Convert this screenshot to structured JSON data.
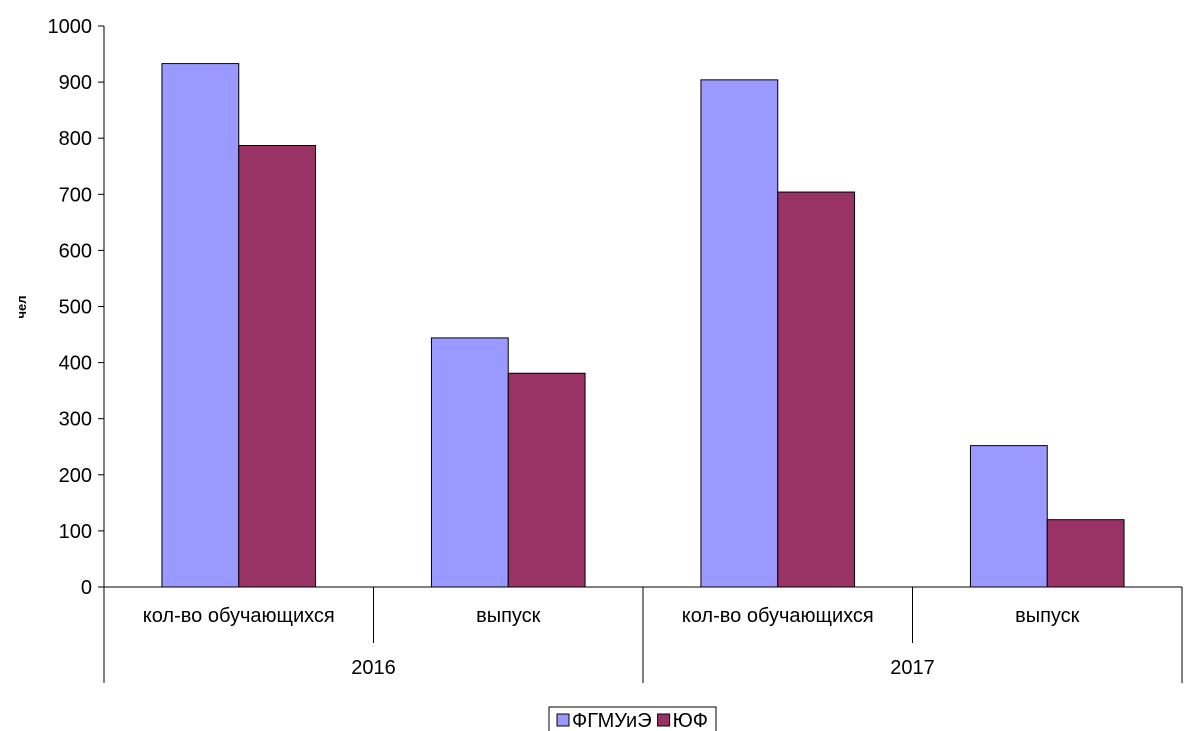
{
  "chart_data": {
    "type": "bar",
    "title": "",
    "xlabel": "",
    "ylabel": "чел",
    "ylim": [
      0,
      1000
    ],
    "yticks": [
      0,
      100,
      200,
      300,
      400,
      500,
      600,
      700,
      800,
      900,
      1000
    ],
    "groups": [
      {
        "label": "2016",
        "categories": [
          "кол-во обучающихся",
          "выпуск"
        ]
      },
      {
        "label": "2017",
        "categories": [
          "кол-во обучающихся",
          "выпуск"
        ]
      }
    ],
    "series": [
      {
        "name": "ФГМУиЭ",
        "color": "#9999ff",
        "values": [
          933,
          444,
          904,
          252
        ]
      },
      {
        "name": "ЮФ",
        "color": "#993366",
        "values": [
          787,
          381,
          704,
          120
        ]
      }
    ],
    "grid": false,
    "legend_position": "bottom"
  }
}
